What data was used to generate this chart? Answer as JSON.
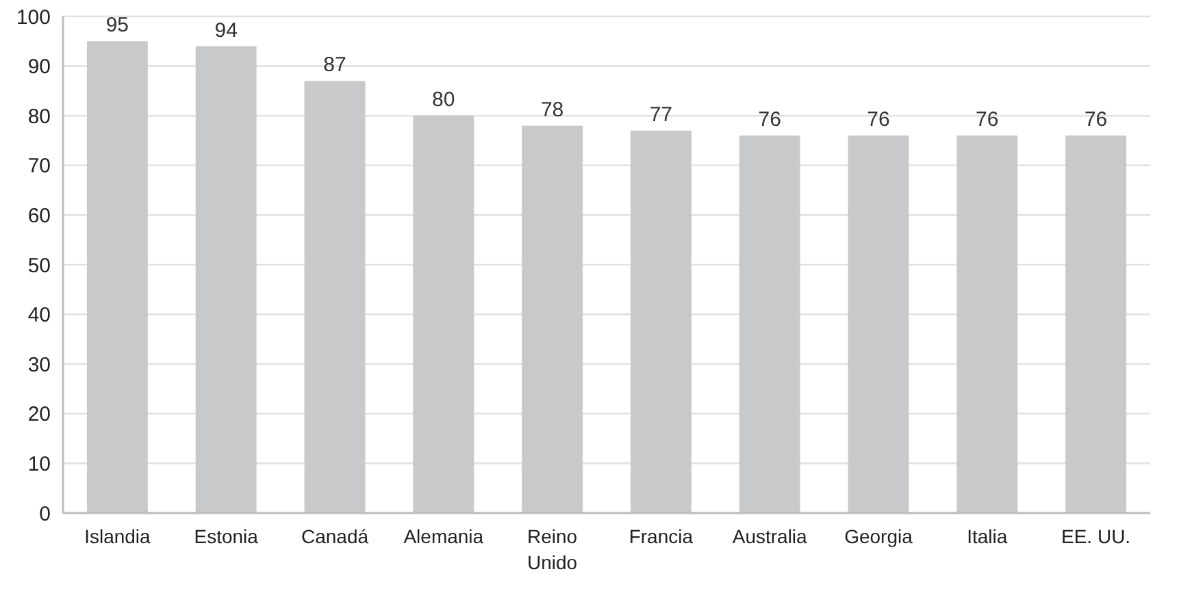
{
  "chart_data": {
    "type": "bar",
    "categories": [
      "Islandia",
      "Estonia",
      "Canadá",
      "Alemania",
      "Reino Unido",
      "Francia",
      "Australia",
      "Georgia",
      "Italia",
      "EE. UU."
    ],
    "values": [
      95,
      94,
      87,
      80,
      78,
      77,
      76,
      76,
      76,
      76
    ],
    "color": "#c8c9ca",
    "ylim": [
      0,
      100
    ],
    "yticks": [
      0,
      10,
      20,
      30,
      40,
      50,
      60,
      70,
      80,
      90,
      100
    ],
    "grid": "y",
    "data_labels": true
  }
}
